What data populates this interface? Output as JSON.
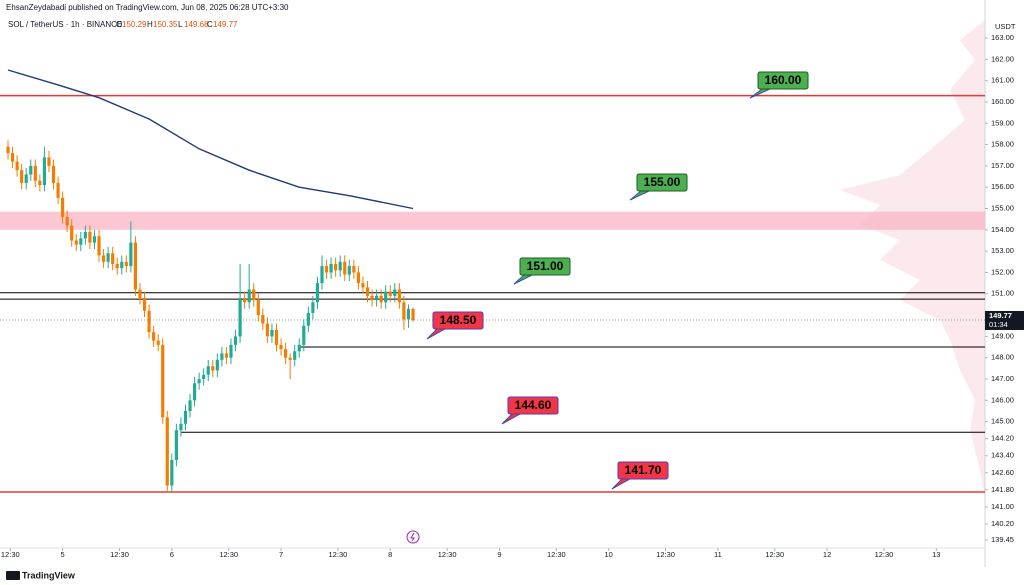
{
  "header": {
    "publisher": "EhsanZeydabadi published on TradingView.com, Jun 08, 2025 06:28 UTC+3:30"
  },
  "chart_data": {
    "type": "candlestick",
    "title": "SOL / TetherUS · 1h · BINANCE",
    "ohlc_labels": [
      "O",
      "H",
      "L",
      "C"
    ],
    "up_color": "#22ab94",
    "down_color": "#f57c00",
    "open": [
      157.9,
      157.6,
      157.2,
      156.8,
      156.2,
      156.6,
      157.0,
      156.3,
      156.1,
      157.4,
      157.0,
      156.2,
      155.5,
      154.6,
      154.2,
      153.5,
      153.3,
      153.6,
      153.9,
      153.4,
      153.7,
      152.8,
      152.5,
      152.9,
      152.4,
      152.2,
      152.5,
      152.3,
      153.4,
      151.2,
      150.8,
      150.2,
      149.2,
      148.8,
      148.6,
      145.2,
      142.0,
      143.2,
      144.6,
      144.9,
      145.5,
      146.0,
      146.8,
      147.0,
      147.2,
      147.6,
      147.4,
      147.9,
      148.2,
      148.0,
      148.6,
      149.0,
      150.8,
      150.6,
      151.2,
      150.7,
      150.0,
      149.6,
      149.0,
      149.3,
      148.6,
      148.4,
      148.0,
      147.9,
      148.3,
      148.6,
      149.5,
      150.1,
      150.6,
      151.5,
      152.3,
      152.0,
      152.4,
      152.1,
      152.5,
      151.9,
      152.3,
      152.0,
      151.5,
      151.3,
      150.9,
      150.7,
      150.9,
      150.6,
      151.1,
      150.9,
      151.2,
      150.6,
      149.8,
      150.29
    ],
    "high": [
      158.2,
      157.9,
      157.5,
      157.1,
      156.9,
      157.3,
      157.3,
      156.6,
      157.9,
      157.7,
      157.3,
      156.5,
      155.8,
      154.9,
      154.5,
      153.8,
      153.9,
      154.2,
      154.2,
      154.0,
      154.0,
      153.1,
      153.2,
      153.2,
      152.7,
      152.8,
      152.8,
      154.4,
      153.7,
      151.5,
      151.1,
      150.5,
      149.5,
      149.1,
      148.9,
      145.5,
      143.5,
      144.9,
      145.2,
      145.8,
      146.3,
      147.1,
      147.3,
      147.5,
      147.9,
      147.9,
      148.2,
      148.5,
      148.5,
      148.9,
      149.3,
      152.4,
      151.1,
      152.4,
      151.5,
      151.0,
      150.3,
      149.9,
      149.6,
      149.6,
      148.9,
      148.7,
      148.2,
      148.6,
      148.9,
      149.8,
      150.4,
      150.9,
      151.8,
      152.8,
      152.6,
      152.7,
      152.7,
      152.8,
      152.8,
      152.6,
      152.6,
      152.3,
      151.8,
      151.6,
      151.2,
      151.2,
      151.2,
      151.4,
      151.4,
      151.5,
      151.5,
      150.9,
      150.5,
      150.35
    ],
    "low": [
      157.3,
      156.9,
      156.5,
      155.9,
      155.9,
      156.3,
      156.0,
      155.8,
      155.8,
      156.7,
      155.9,
      155.2,
      154.3,
      153.9,
      153.2,
      153.0,
      153.0,
      153.3,
      153.1,
      153.1,
      152.5,
      152.2,
      152.2,
      152.1,
      151.9,
      151.9,
      152.0,
      152.0,
      150.9,
      150.5,
      149.9,
      148.9,
      148.5,
      148.3,
      144.9,
      141.7,
      141.7,
      142.9,
      144.3,
      144.6,
      145.2,
      145.7,
      146.5,
      146.7,
      146.9,
      147.1,
      147.1,
      147.6,
      147.7,
      147.7,
      148.3,
      148.7,
      150.3,
      150.3,
      150.4,
      149.7,
      149.3,
      148.7,
      148.7,
      148.3,
      148.1,
      147.7,
      147.0,
      147.6,
      148.0,
      148.3,
      149.2,
      149.8,
      150.3,
      151.2,
      151.7,
      151.7,
      151.8,
      151.8,
      151.6,
      151.6,
      151.7,
      151.2,
      151.0,
      150.6,
      150.4,
      150.4,
      150.3,
      150.3,
      150.6,
      150.6,
      150.3,
      149.3,
      149.4,
      149.68
    ],
    "close": [
      157.6,
      157.2,
      156.8,
      156.2,
      156.6,
      157.0,
      156.3,
      156.1,
      157.4,
      157.0,
      156.2,
      155.5,
      154.6,
      154.2,
      153.5,
      153.3,
      153.6,
      153.9,
      153.4,
      153.7,
      152.8,
      152.5,
      152.9,
      152.4,
      152.2,
      152.5,
      152.3,
      153.4,
      151.2,
      150.8,
      150.2,
      149.2,
      148.8,
      148.6,
      145.2,
      142.0,
      143.2,
      144.6,
      144.9,
      145.5,
      146.0,
      146.8,
      147.0,
      147.2,
      147.6,
      147.4,
      147.9,
      148.2,
      148.0,
      148.6,
      149.0,
      150.8,
      150.6,
      151.2,
      150.7,
      150.0,
      149.6,
      149.0,
      149.3,
      148.6,
      148.4,
      148.0,
      147.9,
      148.3,
      148.6,
      149.5,
      150.1,
      150.6,
      151.5,
      152.3,
      152.0,
      152.4,
      152.1,
      152.5,
      151.9,
      152.3,
      152.0,
      151.5,
      151.3,
      150.9,
      150.7,
      150.9,
      150.6,
      151.1,
      150.9,
      151.2,
      150.6,
      149.8,
      150.29,
      149.77
    ],
    "moving_average": {
      "color": "#1e3a78",
      "x": [
        0,
        11,
        20,
        31,
        42,
        53,
        64,
        75,
        89
      ],
      "values": [
        161.5,
        160.8,
        160.2,
        159.2,
        157.8,
        156.8,
        156.0,
        155.6,
        155.0
      ]
    },
    "zone": {
      "low": 154.0,
      "high": 154.85,
      "color": "#f8b4c4"
    },
    "levels": [
      {
        "value": 160.3,
        "color": "#e53935"
      },
      {
        "value": 151.05,
        "color": "#000000"
      },
      {
        "value": 150.75,
        "color": "#000000"
      },
      {
        "value": 148.5,
        "color": "#000000",
        "x_start": 64
      },
      {
        "value": 144.5,
        "color": "#000000",
        "x_start": 38
      },
      {
        "value": 141.7,
        "color": "#e53935"
      }
    ],
    "annotations": [
      {
        "text": "160.00",
        "color": "#4caf50"
      },
      {
        "text": "155.00",
        "color": "#4caf50"
      },
      {
        "text": "151.00",
        "color": "#4caf50"
      },
      {
        "text": "148.50",
        "color": "#f23645"
      },
      {
        "text": "144.60",
        "color": "#f23645"
      },
      {
        "text": "141.70",
        "color": "#f23645"
      }
    ],
    "currency": "USDT",
    "countdown": "01:34",
    "xlim": [
      -1.76,
      214.7
    ],
    "xticks": [
      {
        "value": 0.5,
        "label": "12:30"
      },
      {
        "value": 12,
        "label": "5"
      },
      {
        "value": 24.5,
        "label": "12:30"
      },
      {
        "value": 36,
        "label": "6"
      },
      {
        "value": 48.5,
        "label": "12:30"
      },
      {
        "value": 60,
        "label": "7"
      },
      {
        "value": 72.5,
        "label": "12:30"
      },
      {
        "value": 84,
        "label": "8"
      },
      {
        "value": 96.5,
        "label": "12:30"
      },
      {
        "value": 108,
        "label": "9"
      },
      {
        "value": 120.5,
        "label": "12:30"
      },
      {
        "value": 132,
        "label": "10"
      },
      {
        "value": 144.5,
        "label": "12:30"
      },
      {
        "value": 156,
        "label": "11"
      },
      {
        "value": 168.5,
        "label": "12:30"
      },
      {
        "value": 180,
        "label": "12"
      },
      {
        "value": 192.5,
        "label": "12:30"
      },
      {
        "value": 204,
        "label": "13"
      }
    ],
    "ylim": [
      139.07,
      163.94
    ],
    "yticks": [
      {
        "value": 163,
        "label": "163.00"
      },
      {
        "value": 162,
        "label": "162.00"
      },
      {
        "value": 161,
        "label": "161.00"
      },
      {
        "value": 160,
        "label": "160.00"
      },
      {
        "value": 159,
        "label": "159.00"
      },
      {
        "value": 158,
        "label": "158.00"
      },
      {
        "value": 157,
        "label": "157.00"
      },
      {
        "value": 156,
        "label": "156.00"
      },
      {
        "value": 155,
        "label": "155.00"
      },
      {
        "value": 154,
        "label": "154.00"
      },
      {
        "value": 153,
        "label": "153.00"
      },
      {
        "value": 152,
        "label": "152.00"
      },
      {
        "value": 151,
        "label": "151.00"
      },
      {
        "value": 150,
        "label": "150.00"
      },
      {
        "value": 149,
        "label": "149.00"
      },
      {
        "value": 148,
        "label": "148.00"
      },
      {
        "value": 147,
        "label": "147.00"
      },
      {
        "value": 146,
        "label": "146.00"
      },
      {
        "value": 145,
        "label": "145.00"
      },
      {
        "value": 144.2,
        "label": "144.20"
      },
      {
        "value": 143.4,
        "label": "143.40"
      },
      {
        "value": 142.6,
        "label": "142.60"
      },
      {
        "value": 141.8,
        "label": "141.80"
      },
      {
        "value": 141,
        "label": "141.00"
      },
      {
        "value": 140.2,
        "label": "140.20"
      },
      {
        "value": 139.45,
        "label": "139.45"
      }
    ]
  },
  "footer": {
    "brand": "TradingView"
  }
}
